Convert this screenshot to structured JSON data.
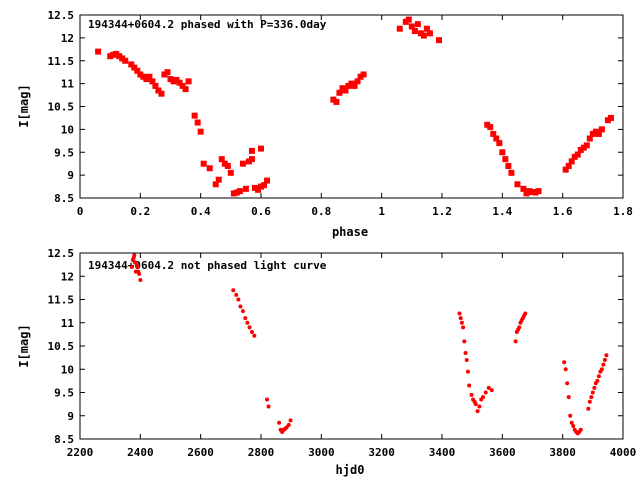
{
  "chart_data": [
    {
      "type": "scatter",
      "title": "194344+0604.2 phased with P=336.0day",
      "xlabel": "phase",
      "ylabel": "I[mag]",
      "xlim": [
        0,
        1.8
      ],
      "ylim": [
        12.5,
        8.5
      ],
      "y_inverted": true,
      "grid": false,
      "marker_color": "#ff0000",
      "x_ticks": [
        "0",
        "0.2",
        "0.4",
        "0.6",
        "0.8",
        "1",
        "1.2",
        "1.4",
        "1.6",
        "1.8"
      ],
      "y_ticks": [
        "8.5",
        "9",
        "9.5",
        "10",
        "10.5",
        "11",
        "11.5",
        "12",
        "12.5"
      ],
      "series": [
        {
          "x": [
            0.06,
            0.1,
            0.11,
            0.12,
            0.13,
            0.14,
            0.15,
            0.17,
            0.18,
            0.19,
            0.2,
            0.21,
            0.22,
            0.23,
            0.24,
            0.25,
            0.26,
            0.27,
            0.28,
            0.29,
            0.3,
            0.31,
            0.32,
            0.33,
            0.34,
            0.35,
            0.36,
            0.38,
            0.39,
            0.4,
            0.41,
            0.43,
            0.45,
            0.46,
            0.47,
            0.48,
            0.49,
            0.5,
            0.51,
            0.52,
            0.53,
            0.54,
            0.55,
            0.56,
            0.57,
            0.58,
            0.59,
            0.6,
            0.61,
            0.62,
            0.6,
            0.57,
            0.84,
            0.85,
            0.86,
            0.87,
            0.88,
            0.89,
            0.9,
            0.91,
            0.92,
            0.93,
            0.94,
            1.06,
            1.08,
            1.09,
            1.1,
            1.11,
            1.12,
            1.13,
            1.14,
            1.15,
            1.16,
            1.19,
            1.35,
            1.36,
            1.37,
            1.38,
            1.39,
            1.4,
            1.41,
            1.42,
            1.43,
            1.45,
            1.47,
            1.48,
            1.49,
            1.5,
            1.51,
            1.52,
            1.61,
            1.62,
            1.63,
            1.64,
            1.65,
            1.66,
            1.67,
            1.68,
            1.69,
            1.7,
            1.71,
            1.72,
            1.73,
            1.75,
            1.76
          ],
          "y": [
            11.7,
            11.6,
            11.63,
            11.65,
            11.6,
            11.55,
            11.5,
            11.42,
            11.35,
            11.28,
            11.2,
            11.15,
            11.1,
            11.15,
            11.05,
            10.95,
            10.85,
            10.78,
            11.2,
            11.25,
            11.1,
            11.05,
            11.08,
            11.02,
            10.95,
            10.88,
            11.05,
            10.3,
            10.15,
            9.95,
            9.25,
            9.15,
            8.8,
            8.9,
            9.35,
            9.25,
            9.2,
            9.05,
            8.6,
            8.62,
            8.65,
            9.25,
            8.7,
            9.3,
            9.35,
            8.72,
            8.68,
            8.75,
            8.78,
            8.88,
            9.58,
            9.53,
            10.65,
            10.6,
            10.8,
            10.9,
            10.85,
            10.95,
            11.0,
            10.95,
            11.05,
            11.15,
            11.2,
            12.2,
            12.35,
            12.4,
            12.25,
            12.15,
            12.3,
            12.1,
            12.05,
            12.2,
            12.1,
            11.95,
            10.1,
            10.05,
            9.9,
            9.8,
            9.7,
            9.5,
            9.35,
            9.2,
            9.05,
            8.8,
            8.7,
            8.6,
            8.65,
            8.63,
            8.62,
            8.65,
            9.12,
            9.2,
            9.3,
            9.4,
            9.45,
            9.55,
            9.6,
            9.65,
            9.8,
            9.9,
            9.95,
            9.9,
            10.0,
            10.2,
            10.25
          ]
        }
      ]
    },
    {
      "type": "scatter",
      "title": "194344+0604.2 not phased light curve",
      "xlabel": "hjd0",
      "ylabel": "I[mag]",
      "xlim": [
        2200,
        4000
      ],
      "ylim": [
        12.5,
        8.5
      ],
      "y_inverted": true,
      "grid": false,
      "marker_color": "#ff0000",
      "x_ticks": [
        "2200",
        "2400",
        "2600",
        "2800",
        "3000",
        "3200",
        "3400",
        "3600",
        "3800",
        "4000"
      ],
      "y_ticks": [
        "8.5",
        "9",
        "9.5",
        "10",
        "10.5",
        "11",
        "11.5",
        "12",
        "12.5"
      ],
      "series": [
        {
          "x": [
            2372,
            2375,
            2378,
            2380,
            2382,
            2385,
            2388,
            2390,
            2393,
            2396,
            2400,
            2708,
            2718,
            2725,
            2732,
            2740,
            2748,
            2755,
            2762,
            2770,
            2778,
            2820,
            2825,
            2860,
            2865,
            2870,
            2875,
            2880,
            2885,
            2892,
            2898,
            3458,
            3462,
            3466,
            3470,
            3474,
            3478,
            3482,
            3486,
            3490,
            3498,
            3503,
            3508,
            3512,
            3518,
            3524,
            3530,
            3536,
            3545,
            3555,
            3565,
            3644,
            3648,
            3652,
            3656,
            3660,
            3664,
            3668,
            3672,
            3676,
            3805,
            3810,
            3815,
            3820,
            3825,
            3830,
            3835,
            3840,
            3845,
            3850,
            3855,
            3860,
            3885,
            3890,
            3895,
            3900,
            3905,
            3910,
            3915,
            3920,
            3925,
            3930,
            3935,
            3940,
            3945
          ],
          "y": [
            12.2,
            12.35,
            12.4,
            12.45,
            12.3,
            12.1,
            12.25,
            12.2,
            12.1,
            12.05,
            11.92,
            11.7,
            11.6,
            11.5,
            11.35,
            11.25,
            11.1,
            11.0,
            10.9,
            10.8,
            10.72,
            9.35,
            9.2,
            8.85,
            8.7,
            8.65,
            8.7,
            8.72,
            8.75,
            8.8,
            8.9,
            11.2,
            11.1,
            11.0,
            10.9,
            10.6,
            10.35,
            10.2,
            9.95,
            9.65,
            9.45,
            9.35,
            9.3,
            9.25,
            9.1,
            9.2,
            9.35,
            9.4,
            9.5,
            9.6,
            9.55,
            10.6,
            10.8,
            10.85,
            10.9,
            11.0,
            11.05,
            11.1,
            11.15,
            11.2,
            10.15,
            10.0,
            9.7,
            9.4,
            9.0,
            8.85,
            8.78,
            8.7,
            8.65,
            8.62,
            8.65,
            8.7,
            9.15,
            9.3,
            9.4,
            9.5,
            9.6,
            9.7,
            9.75,
            9.85,
            9.95,
            10.0,
            10.1,
            10.2,
            10.3
          ]
        }
      ]
    }
  ]
}
